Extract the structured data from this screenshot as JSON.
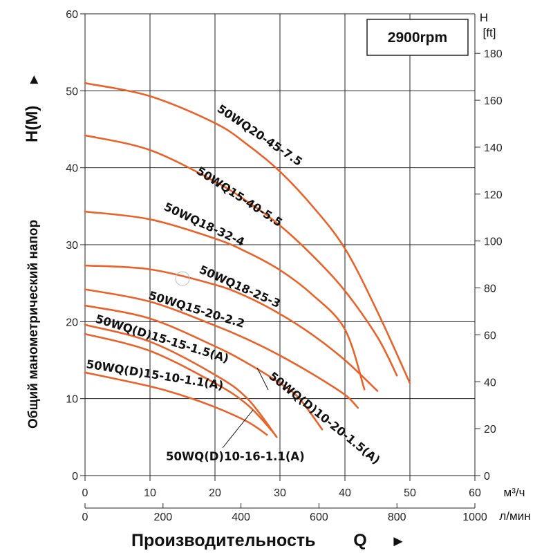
{
  "chart_data": {
    "type": "line",
    "speed_badge": "2900rpm",
    "color": "#e8622a",
    "x_axis": {
      "min": 0,
      "max": 60,
      "ticks": [
        0,
        10,
        20,
        30,
        40,
        50,
        60
      ],
      "unit": "м³/ч"
    },
    "x2_axis": {
      "min": 0,
      "max": 1000,
      "ticks": [
        0,
        200,
        400,
        600,
        800,
        1000
      ],
      "unit": "л/мин"
    },
    "y_axis": {
      "min": 0,
      "max": 60,
      "ticks": [
        0,
        10,
        20,
        30,
        40,
        50,
        60
      ]
    },
    "y2_axis": {
      "min": 0,
      "max": 196.85,
      "ticks": [
        0,
        20,
        40,
        60,
        80,
        100,
        120,
        140,
        160,
        180
      ],
      "unit_top": "H",
      "unit_bottom": "[ft]"
    },
    "xlabel": "Производительность",
    "xlabel_symbol": "Q",
    "xlabel_arrow": "►",
    "ylabel": "Общий манометрический напор",
    "ylabel_symbol": "H(М)",
    "ylabel_arrow": "►",
    "grid": true,
    "series": [
      {
        "name": "50WQ20-45-7.5",
        "x": [
          0,
          10,
          20,
          25,
          30,
          35,
          40,
          45,
          50
        ],
        "y": [
          51,
          49.3,
          45.8,
          43,
          39.5,
          35,
          29.5,
          21.3,
          12
        ]
      },
      {
        "name": "50WQ15-40-5.5",
        "x": [
          0,
          10,
          20,
          25,
          30,
          35,
          40,
          45,
          48
        ],
        "y": [
          44.2,
          42.3,
          38.2,
          35.6,
          32.5,
          28.6,
          24,
          18,
          13
        ]
      },
      {
        "name": "50WQ18-32-4",
        "x": [
          0,
          10,
          20,
          25,
          30,
          35,
          40,
          43
        ],
        "y": [
          34.3,
          33.3,
          30.8,
          29,
          26.7,
          23.5,
          19,
          11.2
        ]
      },
      {
        "name": "50WQ18-25-3",
        "x": [
          0,
          10,
          20,
          25,
          30,
          35,
          40,
          45
        ],
        "y": [
          27.3,
          26.8,
          24.8,
          23.2,
          21,
          18.3,
          15,
          11
        ]
      },
      {
        "name": "50WQ15-20-2.2",
        "x": [
          0,
          10,
          20,
          25,
          30,
          35,
          40,
          42
        ],
        "y": [
          24.2,
          22.6,
          19.5,
          17.7,
          15.6,
          13.2,
          10.5,
          8.8
        ]
      },
      {
        "name": "50WQ(D)10-20-1.5(A)",
        "x": [
          0,
          10,
          20,
          25,
          30,
          33,
          36.5
        ],
        "y": [
          22.1,
          20.4,
          16.8,
          14.6,
          12,
          10,
          6
        ]
      },
      {
        "name": "50WQ(D)15-15-1.5(A)",
        "x": [
          0,
          10,
          20,
          25,
          29.5
        ],
        "y": [
          19.6,
          17.4,
          13.1,
          10,
          5
        ]
      },
      {
        "name": "50WQ(D)10-16-1.1(A)",
        "x": [
          0,
          10,
          20,
          25,
          29
        ],
        "y": [
          18.4,
          16.2,
          12,
          9.2,
          5.6
        ]
      },
      {
        "name": "50WQ(D)15-10-1.1(A)",
        "x": [
          0,
          10,
          15,
          20,
          25,
          28
        ],
        "y": [
          13.4,
          11.6,
          10.4,
          8.9,
          7,
          5.3
        ]
      }
    ]
  }
}
